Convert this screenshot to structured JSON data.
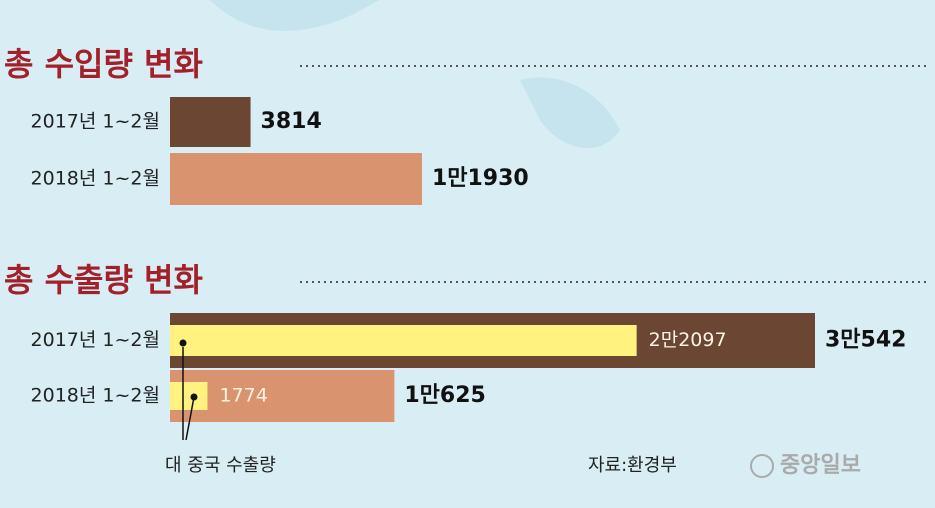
{
  "chart_data": [
    {
      "type": "hbar",
      "title": "총 수입량 변화",
      "categories": [
        "2017년 1~2월",
        "2018년 1~2월"
      ],
      "colors": [
        "#6b4632",
        "#d9936e"
      ],
      "values": [
        3814,
        11930
      ],
      "value_labels": [
        "3814",
        "1만1930"
      ]
    },
    {
      "type": "hbar",
      "title": "총 수출량 변화",
      "categories": [
        "2017년 1~2월",
        "2018년 1~2월"
      ],
      "colors": [
        "#6b4632",
        "#d9936e"
      ],
      "values": [
        30542,
        10625
      ],
      "value_labels": [
        "3만542",
        "1만625"
      ],
      "overlay": {
        "name": "대 중국 수출량",
        "color": "#fff27e",
        "values": [
          22097,
          1774
        ],
        "value_labels": [
          "2만2097",
          "1774"
        ]
      }
    }
  ],
  "source": "자료:환경부",
  "logo": "중앙일보"
}
